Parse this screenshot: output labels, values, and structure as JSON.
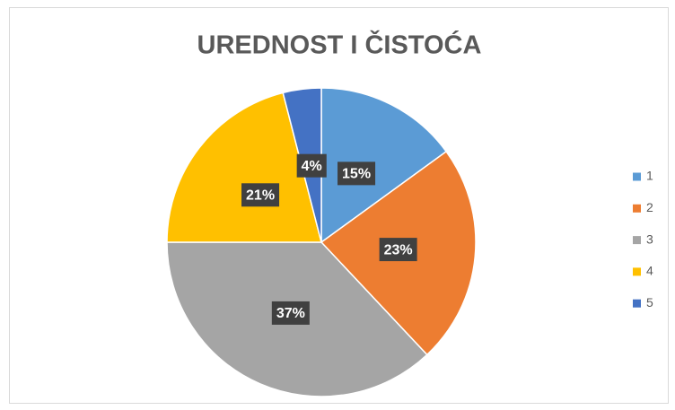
{
  "chart_data": {
    "type": "pie",
    "title": "UREDNOST I ČISTOĆA",
    "categories": [
      "1",
      "2",
      "3",
      "4",
      "5"
    ],
    "values": [
      15,
      23,
      37,
      21,
      4
    ],
    "value_labels": [
      "15%",
      "23%",
      "37%",
      "21%",
      "4%"
    ],
    "colors": [
      "#5b9bd5",
      "#ed7d31",
      "#a5a5a5",
      "#ffc000",
      "#4472c4"
    ],
    "legend": "right"
  }
}
